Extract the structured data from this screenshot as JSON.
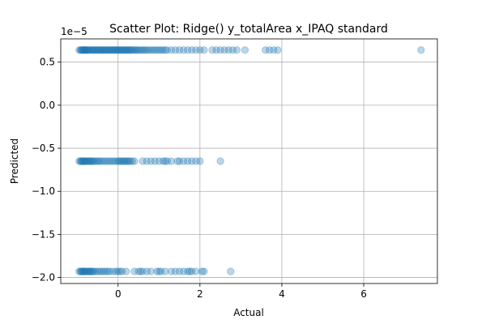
{
  "chart_data": {
    "type": "scatter",
    "title": "Scatter Plot: Ridge() y_totalArea x_IPAQ standard",
    "xlabel": "Actual",
    "ylabel": "Predicted",
    "y_scale_label": "1e−5",
    "xlim": [
      -1.4,
      7.8
    ],
    "ylim": [
      -2.07,
      0.77
    ],
    "xticks": [
      0,
      2,
      4,
      6
    ],
    "xtick_labels": [
      "0",
      "2",
      "4",
      "6"
    ],
    "yticks": [
      0.5,
      0.0,
      -0.5,
      -1.0,
      -1.5,
      -2.0
    ],
    "ytick_labels": [
      "0.5",
      "0.0",
      "−0.5",
      "−1.0",
      "−1.5",
      "−2.0"
    ],
    "grid": true,
    "marker_color": "#1f77b4",
    "marker_alpha": 0.3,
    "series": [
      {
        "y": 0.64,
        "x": [
          -0.95,
          -0.92,
          -0.9,
          -0.88,
          -0.86,
          -0.85,
          -0.83,
          -0.82,
          -0.8,
          -0.78,
          -0.76,
          -0.75,
          -0.73,
          -0.7,
          -0.68,
          -0.65,
          -0.62,
          -0.6,
          -0.58,
          -0.55,
          -0.52,
          -0.5,
          -0.48,
          -0.45,
          -0.42,
          -0.4,
          -0.38,
          -0.35,
          -0.32,
          -0.3,
          -0.28,
          -0.25,
          -0.22,
          -0.2,
          -0.18,
          -0.15,
          -0.12,
          -0.1,
          -0.08,
          -0.05,
          -0.02,
          0.0,
          0.02,
          0.05,
          0.08,
          0.1,
          0.12,
          0.15,
          0.18,
          0.2,
          0.22,
          0.25,
          0.28,
          0.3,
          0.33,
          0.36,
          0.4,
          0.43,
          0.46,
          0.5,
          0.54,
          0.58,
          0.62,
          0.66,
          0.7,
          0.75,
          0.8,
          0.85,
          0.9,
          0.95,
          1.0,
          1.05,
          1.1,
          1.15,
          1.2,
          1.3,
          1.4,
          1.5,
          1.6,
          1.7,
          1.8,
          1.9,
          2.0,
          2.1,
          2.3,
          2.4,
          2.5,
          2.6,
          2.7,
          2.8,
          2.9,
          3.1,
          3.6,
          3.7,
          3.8,
          3.9,
          7.4
        ]
      },
      {
        "y": -0.65,
        "x": [
          -0.95,
          -0.92,
          -0.9,
          -0.88,
          -0.86,
          -0.84,
          -0.82,
          -0.8,
          -0.78,
          -0.75,
          -0.72,
          -0.7,
          -0.68,
          -0.65,
          -0.62,
          -0.6,
          -0.56,
          -0.52,
          -0.48,
          -0.45,
          -0.4,
          -0.35,
          -0.3,
          -0.25,
          -0.2,
          -0.15,
          -0.1,
          -0.05,
          0.0,
          0.03,
          0.06,
          0.1,
          0.13,
          0.16,
          0.2,
          0.23,
          0.26,
          0.3,
          0.35,
          0.4,
          0.6,
          0.7,
          0.8,
          0.9,
          1.0,
          1.1,
          1.15,
          1.2,
          1.3,
          1.45,
          1.5,
          1.6,
          1.7,
          1.8,
          1.9,
          2.0,
          2.5
        ]
      },
      {
        "y": -1.93,
        "x": [
          -0.95,
          -0.92,
          -0.9,
          -0.88,
          -0.86,
          -0.84,
          -0.82,
          -0.8,
          -0.78,
          -0.75,
          -0.72,
          -0.7,
          -0.68,
          -0.65,
          -0.62,
          -0.6,
          -0.55,
          -0.5,
          -0.45,
          -0.4,
          -0.35,
          -0.3,
          -0.25,
          -0.2,
          -0.12,
          -0.05,
          0.0,
          0.05,
          0.1,
          0.2,
          0.4,
          0.5,
          0.55,
          0.6,
          0.7,
          0.8,
          0.95,
          1.0,
          1.05,
          1.15,
          1.3,
          1.4,
          1.5,
          1.6,
          1.7,
          1.75,
          1.8,
          1.9,
          2.05,
          2.1,
          2.75
        ]
      }
    ]
  }
}
